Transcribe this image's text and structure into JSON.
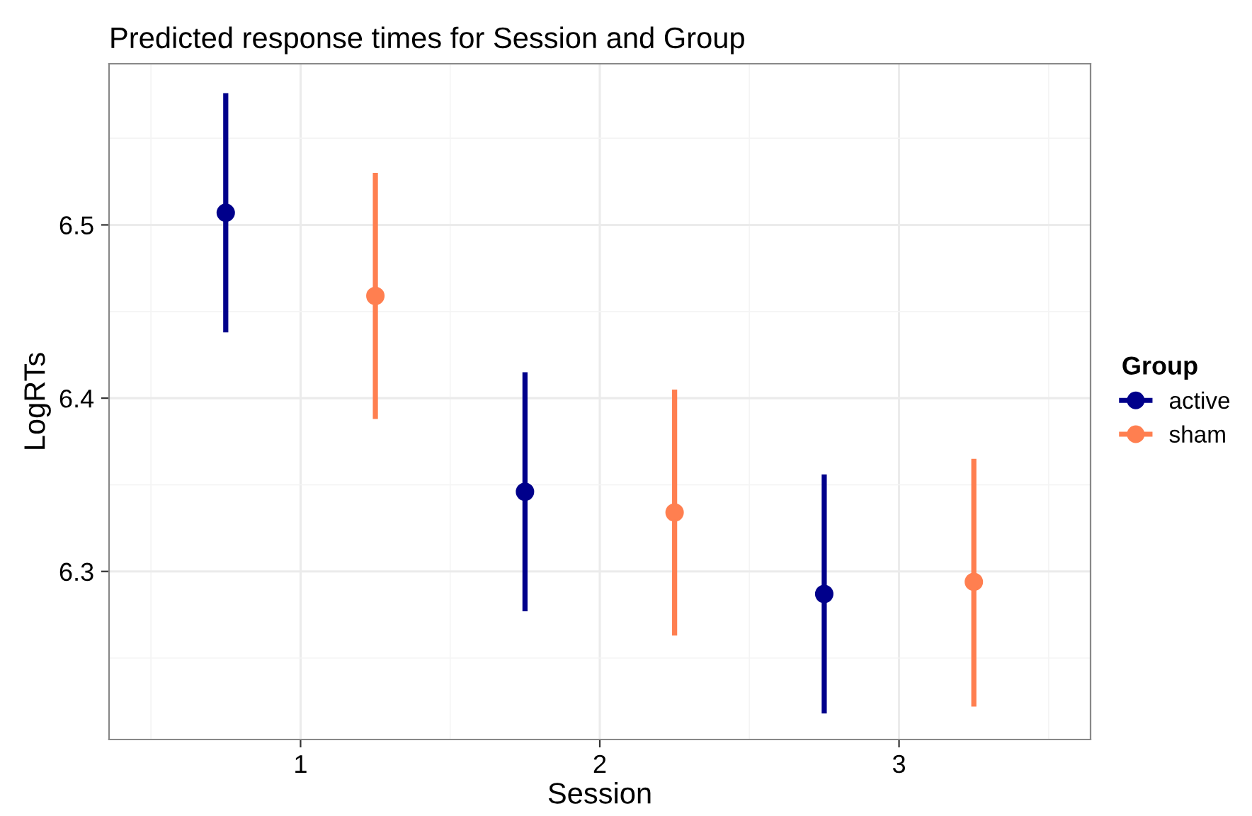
{
  "chart_data": {
    "type": "scatter",
    "title": "Predicted response times for Session and Group",
    "xlabel": "Session",
    "ylabel": "LogRTs",
    "legend_title": "Group",
    "categories": [
      "1",
      "2",
      "3"
    ],
    "series": [
      {
        "name": "active",
        "color": "#00008b",
        "values": [
          6.507,
          6.346,
          6.287
        ],
        "errors": [
          [
            6.438,
            6.576
          ],
          [
            6.277,
            6.415
          ],
          [
            6.218,
            6.356
          ]
        ]
      },
      {
        "name": "sham",
        "color": "#ff7f50",
        "values": [
          6.459,
          6.334,
          6.294
        ],
        "errors": [
          [
            6.388,
            6.53
          ],
          [
            6.263,
            6.405
          ],
          [
            6.222,
            6.365
          ]
        ]
      }
    ],
    "ylim": [
      6.203,
      6.593
    ],
    "yticks": [
      6.3,
      6.4,
      6.5
    ],
    "grid": true,
    "legend": "right",
    "marker": "circle"
  }
}
